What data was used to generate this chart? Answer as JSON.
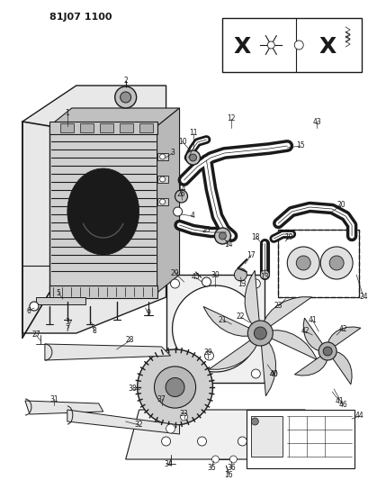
{
  "header": "81J07 1100",
  "bg": "#ffffff",
  "lc": "#1a1a1a",
  "fig_w": 4.1,
  "fig_h": 5.33,
  "dpi": 100
}
